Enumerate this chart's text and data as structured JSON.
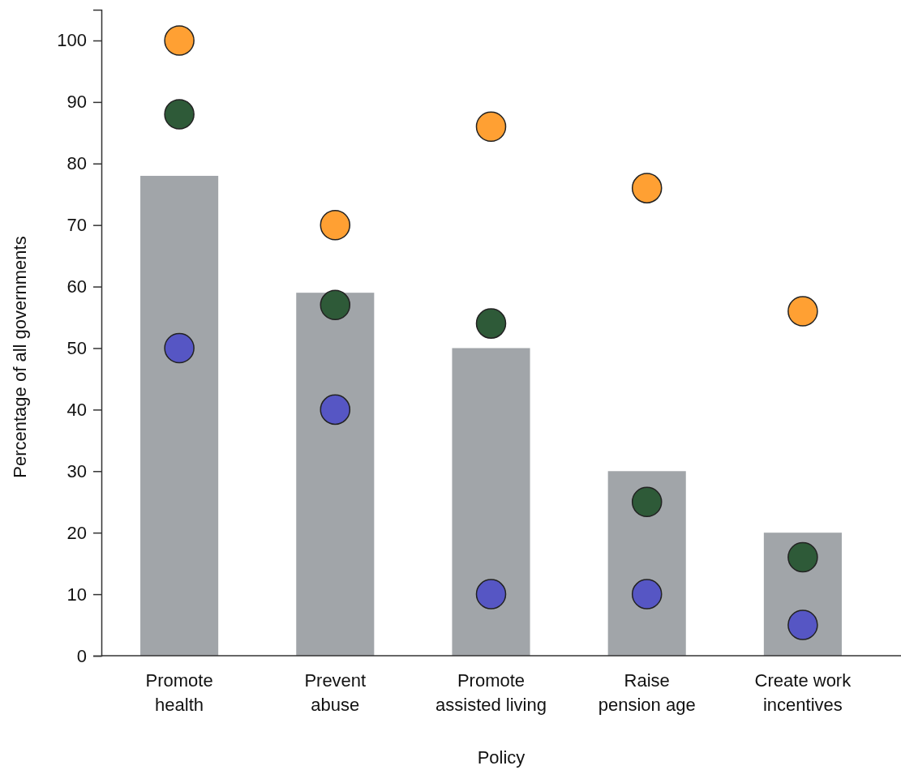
{
  "chart_data": {
    "type": "bar",
    "xlabel": "Policy",
    "ylabel": "Percentage of all governments",
    "categories": [
      "Promote health",
      "Prevent abuse",
      "Promote assisted living",
      "Raise pension age",
      "Create work incentives"
    ],
    "ylim": [
      0,
      105
    ],
    "yticks": [
      0,
      10,
      20,
      30,
      40,
      50,
      60,
      70,
      80,
      90,
      100
    ],
    "grid": false,
    "marker": "circle",
    "series": [
      {
        "color": "#a1a5a9",
        "values": [
          78,
          59,
          50,
          30,
          20
        ]
      },
      {
        "type": "scatter",
        "color": "#ffa033",
        "values": [
          100,
          70,
          86,
          76,
          56
        ]
      },
      {
        "type": "scatter",
        "color": "#2e5a38",
        "values": [
          88,
          57,
          54,
          25,
          16
        ]
      },
      {
        "type": "scatter",
        "color": "#5656c4",
        "values": [
          50,
          40,
          10,
          10,
          5
        ]
      }
    ]
  }
}
